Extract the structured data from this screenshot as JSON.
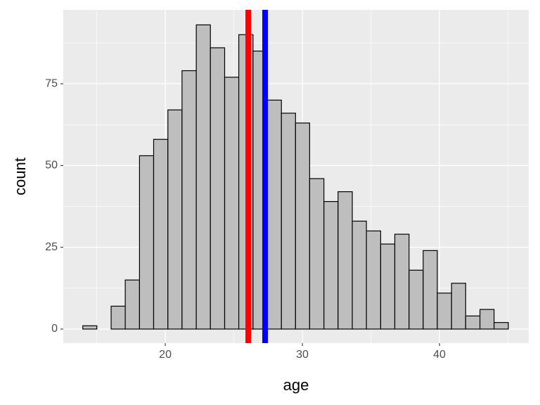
{
  "chart_data": {
    "type": "histogram",
    "x_label": "age",
    "y_label": "count",
    "bins": [
      13.98,
      15.01,
      16.05,
      17.08,
      18.12,
      19.15,
      20.19,
      21.22,
      22.26,
      23.29,
      24.33,
      25.36,
      26.4,
      27.43,
      28.47,
      29.5,
      30.53,
      31.57,
      32.6,
      33.64,
      34.67,
      35.71,
      36.74,
      37.78,
      38.81,
      39.84,
      40.88,
      41.91,
      42.95,
      43.98,
      45.02
    ],
    "values": [
      1,
      0,
      7,
      15,
      53,
      58,
      67,
      79,
      93,
      86,
      77,
      90,
      85,
      70,
      66,
      63,
      46,
      39,
      42,
      33,
      30,
      26,
      29,
      18,
      24,
      11,
      14,
      4,
      6,
      2
    ],
    "color": "#bebebe",
    "edge_color": "#000000",
    "vlines": [
      {
        "value": 26.05,
        "color": "#ff0000"
      },
      {
        "value": 27.28,
        "color": "#0000ff"
      }
    ],
    "xlim": [
      12.56,
      46.51
    ],
    "xticks": [
      20,
      30,
      40
    ],
    "ylim": [
      -4.3,
      97.6
    ],
    "yticks": [
      0,
      25,
      50,
      75
    ],
    "grid": true
  }
}
